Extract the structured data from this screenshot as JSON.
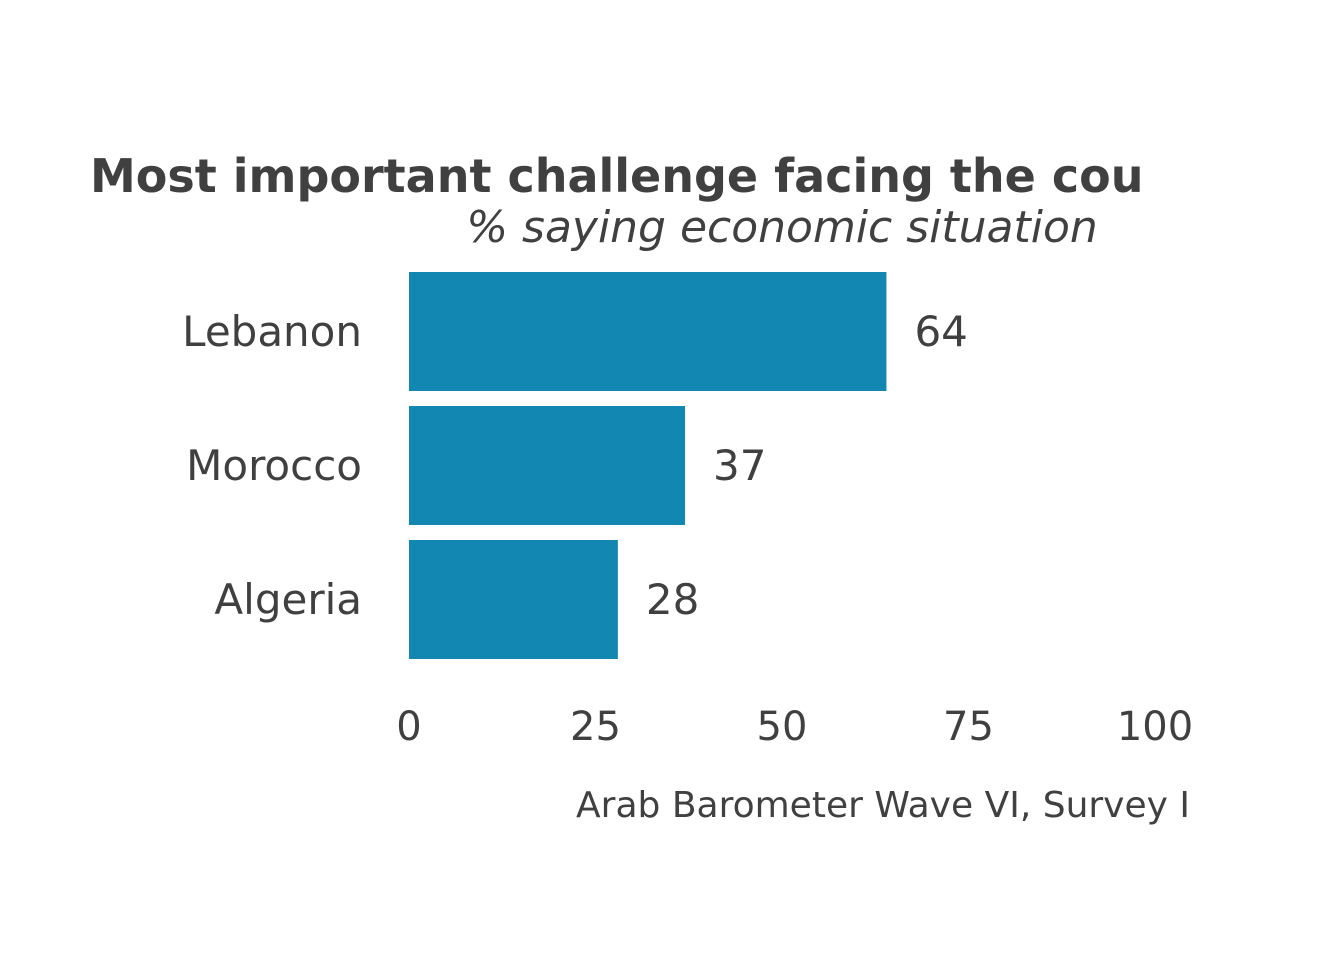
{
  "chart_data": {
    "type": "bar",
    "orientation": "horizontal",
    "title": "Most important challenge facing the cou",
    "subtitle": "% saying economic situation",
    "categories": [
      "Lebanon",
      "Morocco",
      "Algeria"
    ],
    "values": [
      64,
      37,
      28
    ],
    "value_labels": [
      "64",
      "37",
      "28"
    ],
    "x_ticks": [
      "0",
      "25",
      "50",
      "75",
      "100"
    ],
    "xlim": [
      0,
      100
    ],
    "caption": "Arab Barometer Wave VI, Survey I",
    "bar_color": "#1287b1",
    "text_color": "#404040",
    "grid": false
  }
}
